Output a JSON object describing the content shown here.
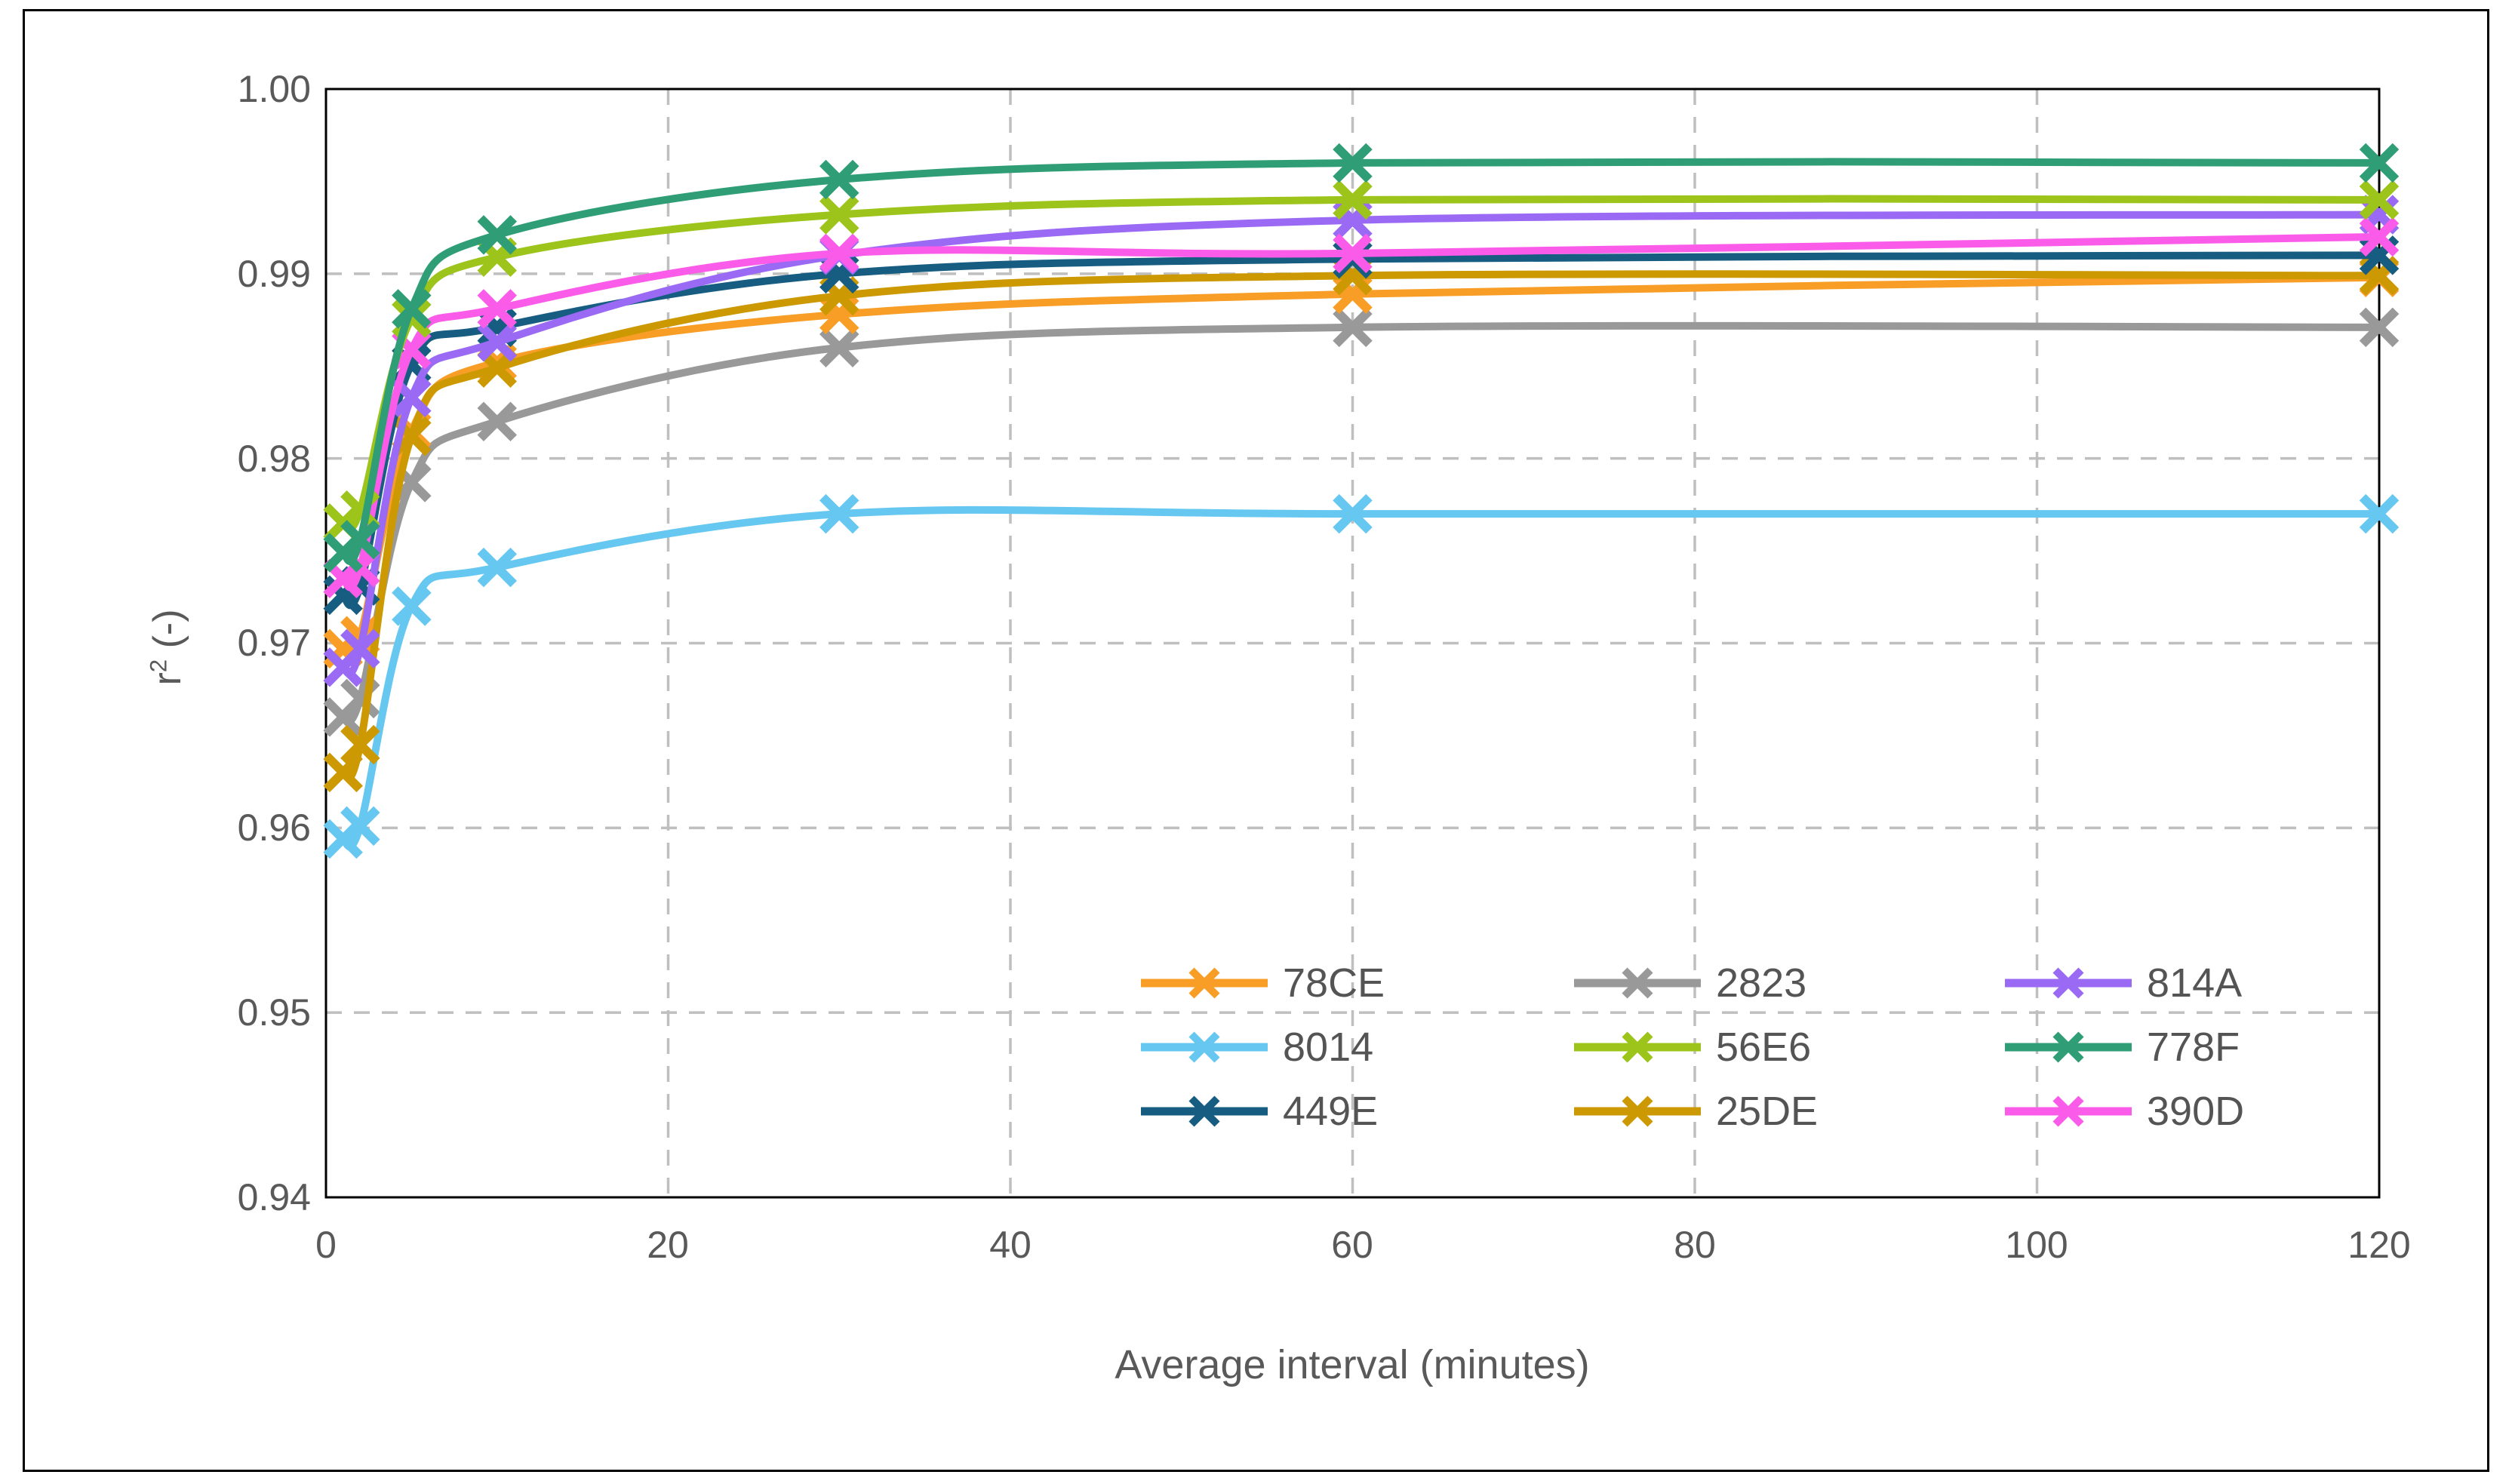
{
  "figure": {
    "background": "#FFFFFF",
    "border_color": "#000000",
    "gridline_color": "#BFBFBF",
    "axis_text_color": "#595959",
    "x_axis_title": "Average interval (minutes)",
    "y_axis_title": "r² (-)",
    "y_axis_title_parts": {
      "base": "r",
      "sup": "2",
      "rest": " (-)"
    }
  },
  "chart_data": {
    "type": "line",
    "title": "",
    "xlabel": "Average interval (minutes)",
    "ylabel": "r² (-)",
    "xlim": [
      0,
      120
    ],
    "ylim": [
      0.94,
      1.0
    ],
    "grid": "dashed horizontal and vertical gridlines",
    "legend_position": "inside lower-right, 3 columns x 3 rows",
    "marker": "x-cross on smooth lines",
    "x": [
      1,
      2,
      5,
      10,
      30,
      60,
      120
    ],
    "x_ticks": [
      "0",
      "20",
      "40",
      "60",
      "80",
      "100",
      "120"
    ],
    "y_ticks": [
      "1.00",
      "0.99",
      "0.98",
      "0.97",
      "0.96",
      "0.95",
      "0.94"
    ],
    "series": [
      {
        "label": "78CE",
        "color": "#F89D25",
        "values": [
          0.9697,
          0.9704,
          0.9815,
          0.9852,
          0.9878,
          0.9889,
          0.9898
        ]
      },
      {
        "label": "2823",
        "color": "#999999",
        "values": [
          0.966,
          0.967,
          0.9787,
          0.982,
          0.986,
          0.9871,
          0.9871
        ]
      },
      {
        "label": "814A",
        "color": "#9A6AF5",
        "values": [
          0.9687,
          0.9697,
          0.9833,
          0.9863,
          0.991,
          0.9929,
          0.9932
        ]
      },
      {
        "label": "8014",
        "color": "#66C7F1",
        "values": [
          0.9594,
          0.9601,
          0.972,
          0.9741,
          0.977,
          0.977,
          0.977
        ]
      },
      {
        "label": "56E6",
        "color": "#9CC41A",
        "values": [
          0.9765,
          0.9772,
          0.9876,
          0.9909,
          0.9932,
          0.994,
          0.994
        ]
      },
      {
        "label": "778F",
        "color": "#2F9E76",
        "values": [
          0.9749,
          0.9756,
          0.9881,
          0.9921,
          0.9951,
          0.996,
          0.996
        ]
      },
      {
        "label": "449E",
        "color": "#175D82",
        "values": [
          0.9726,
          0.9731,
          0.9851,
          0.9871,
          0.99,
          0.9908,
          0.991
        ]
      },
      {
        "label": "25DE",
        "color": "#CC9903",
        "values": [
          0.963,
          0.9645,
          0.9812,
          0.9849,
          0.9888,
          0.9899,
          0.9899
        ]
      },
      {
        "label": "390D",
        "color": "#FB5BE9",
        "values": [
          0.9735,
          0.9741,
          0.9859,
          0.9881,
          0.9911,
          0.9911,
          0.992
        ]
      }
    ]
  }
}
